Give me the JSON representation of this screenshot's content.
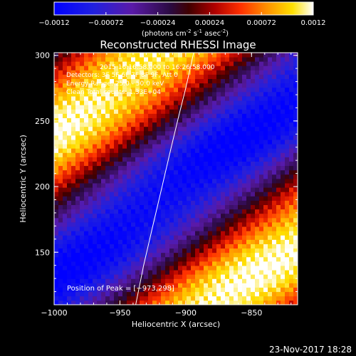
{
  "colorbar": {
    "ticks": [
      "-0.0012",
      "-0.00072",
      "-0.00024",
      "0.00024",
      "0.00072",
      "0.0012"
    ],
    "units_main": "(photons cm",
    "units_exp1": "-2",
    "units_mid": " s",
    "units_exp2": "-1",
    "units_tail": " asec",
    "units_exp3": "-2",
    "units_close": ")"
  },
  "chart_data": {
    "type": "heatmap",
    "title": "Reconstructed RHESSI Image",
    "xlabel": "Heliocentric X (arcsec)",
    "ylabel": "Heliocentric Y (arcsec)",
    "xlim": [
      -1000,
      -815
    ],
    "ylim": [
      110,
      302
    ],
    "xticks": [
      -1000,
      -950,
      -900,
      -850
    ],
    "yticks": [
      150,
      200,
      250,
      300
    ],
    "xtick_labels": [
      "−1000",
      "−950",
      "−900",
      "−850"
    ],
    "ytick_labels": [
      "150",
      "200",
      "250",
      "300"
    ],
    "color_range": [
      -0.0012,
      0.0012
    ],
    "grid": false,
    "info_lines": [
      "Detectors: 3F 5F 6F 7F 8F 9F, Att 0",
      "Energy Range: 25.0 - 50.0 keV",
      "Clean Total counts: 1.33E+04"
    ],
    "info_time": "2015 16:16:58.000 to 16:26:58.000",
    "peak_label": "Position of Peak = [−973,298]",
    "peak": [
      -973,
      298
    ],
    "limb_curve": [
      [
        -938,
        110
      ],
      [
        -932,
        140
      ],
      [
        -925,
        170
      ],
      [
        -918,
        200
      ],
      [
        -911,
        230
      ],
      [
        -905,
        255
      ],
      [
        -900,
        275
      ],
      [
        -896,
        293
      ],
      [
        -894,
        302
      ]
    ]
  },
  "footer": {
    "timestamp": "23-Nov-2017 18:28"
  }
}
